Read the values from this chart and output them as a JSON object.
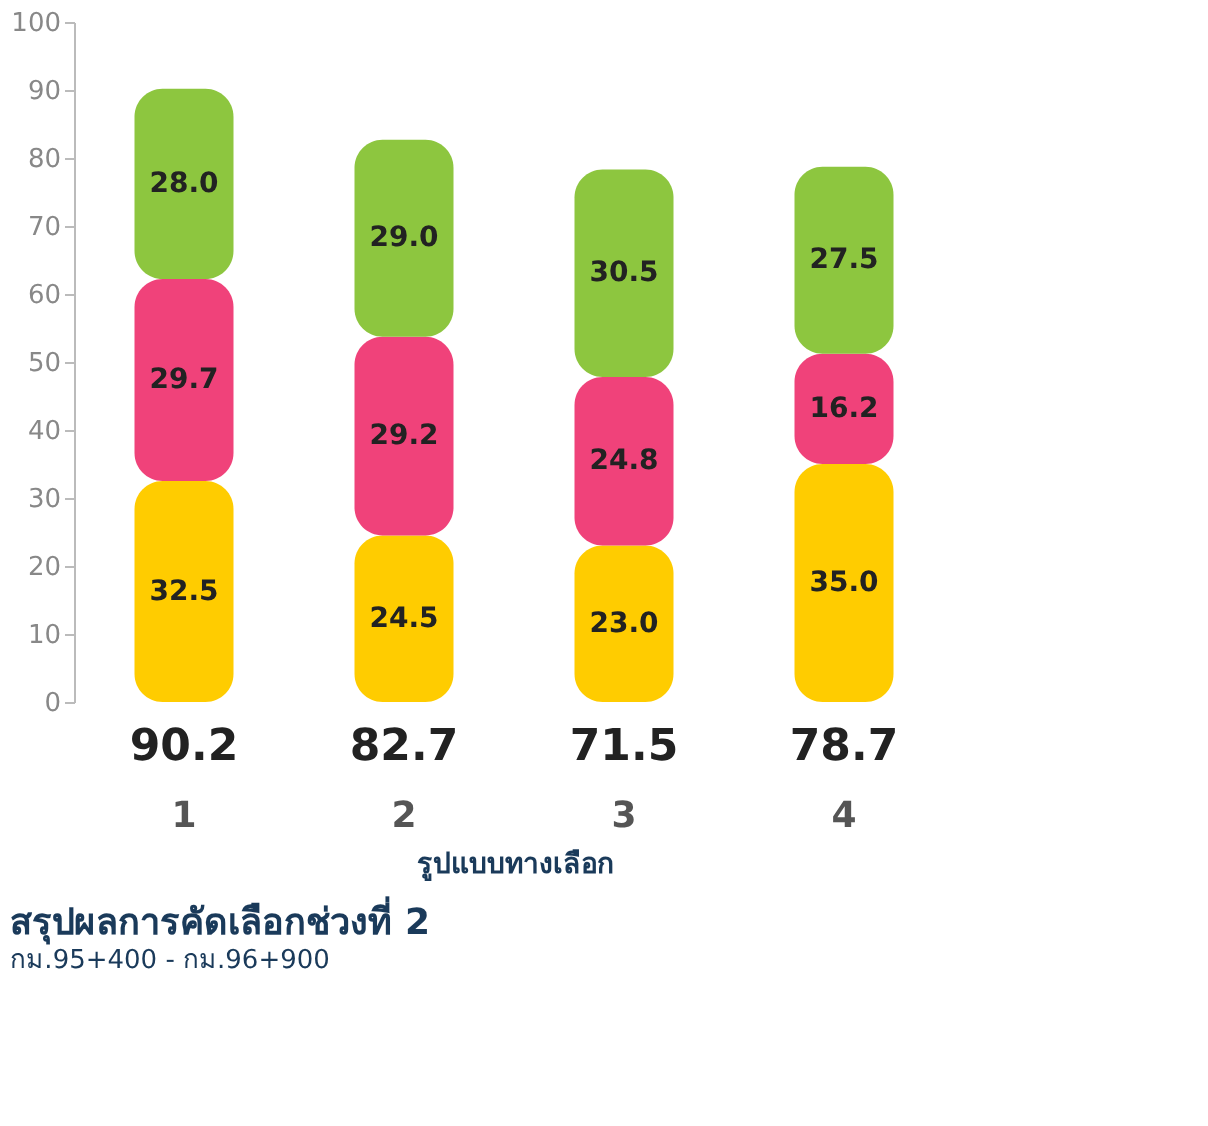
{
  "chart_data": {
    "type": "bar",
    "stacked": true,
    "title": "สรุปผลการคัดเลือกช่วงที่ 2",
    "subtitle": "กม.95+400 - กม.96+900",
    "xlabel": "รูปแบบทางเลือก",
    "categories": [
      "1",
      "2",
      "3",
      "4"
    ],
    "series": [
      {
        "color": "#ffcc00",
        "values": [
          32.5,
          24.5,
          23.0,
          35.0
        ],
        "value_labels": [
          "32.5",
          "24.5",
          "23.0",
          "35.0"
        ]
      },
      {
        "color": "#f0427a",
        "values": [
          29.7,
          29.2,
          24.8,
          16.2
        ],
        "value_labels": [
          "29.7",
          "29.2",
          "24.8",
          "16.2"
        ]
      },
      {
        "color": "#8dc63f",
        "values": [
          28.0,
          29.0,
          30.5,
          27.5
        ],
        "value_labels": [
          "28.0",
          "29.0",
          "30.5",
          "27.5"
        ]
      }
    ],
    "annotations": [
      "90.2",
      "82.7",
      "71.5",
      "78.7"
    ],
    "ylim": [
      0,
      100
    ],
    "yticks": [
      0,
      10,
      20,
      30,
      40,
      50,
      60,
      70,
      80,
      90,
      100
    ],
    "grid": false,
    "legend": false
  }
}
